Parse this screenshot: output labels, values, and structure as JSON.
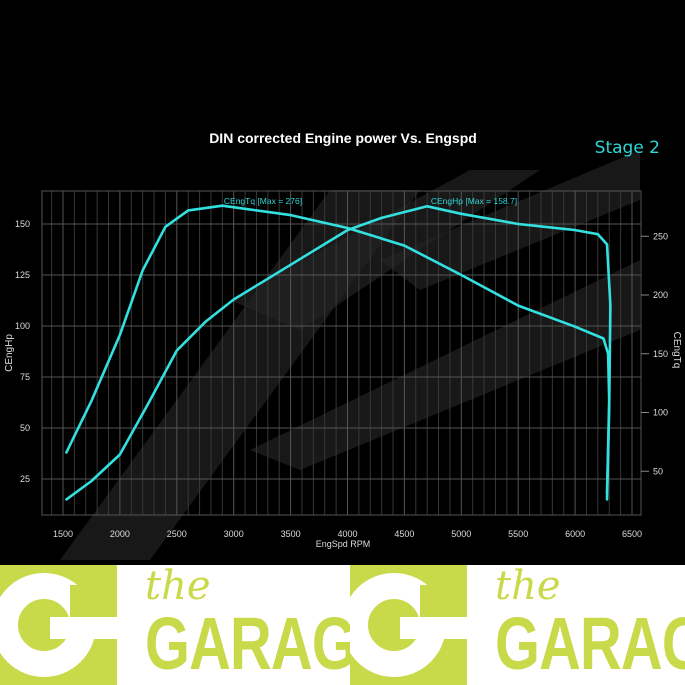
{
  "chart_data": {
    "type": "line",
    "title": "DIN corrected Engine power Vs. Engspd",
    "badge": "Stage 2",
    "xlabel": "EngSpd RPM",
    "ylabel_left": "CEngHp",
    "ylabel_right": "CEngTq",
    "xlim": [
      1300,
      6550
    ],
    "ylim_left": [
      8,
      166
    ],
    "ylim_right": [
      14,
      276
    ],
    "x_ticks": [
      "1500",
      "2000",
      "2500",
      "3000",
      "3500",
      "4000",
      "4500",
      "5000",
      "5500",
      "6000",
      "6500"
    ],
    "y_left_ticks": [
      "25",
      "50",
      "75",
      "100",
      "125",
      "150"
    ],
    "y_right_ticks": [
      "50",
      "100",
      "150",
      "200",
      "250"
    ],
    "grid": true,
    "line_color": "#33e0e0",
    "series": [
      {
        "name": "CEngTq",
        "label": "CEngTq [Max = 276]",
        "axis": "right",
        "points": [
          [
            1530,
            66
          ],
          [
            1750,
            110
          ],
          [
            2000,
            166
          ],
          [
            2200,
            221
          ],
          [
            2400,
            258
          ],
          [
            2600,
            272
          ],
          [
            2900,
            276
          ],
          [
            3500,
            268
          ],
          [
            4000,
            257
          ],
          [
            4500,
            242
          ],
          [
            5000,
            217
          ],
          [
            5500,
            191
          ],
          [
            6000,
            173
          ],
          [
            6250,
            163
          ],
          [
            6290,
            150
          ],
          [
            6300,
            110
          ],
          [
            6290,
            70
          ],
          [
            6280,
            31
          ]
        ]
      },
      {
        "name": "CEngHp",
        "label": "CEngHp [Max = 158.7]",
        "axis": "left",
        "points": [
          [
            1530,
            15
          ],
          [
            1750,
            24
          ],
          [
            2000,
            37
          ],
          [
            2250,
            62
          ],
          [
            2500,
            88
          ],
          [
            2750,
            102
          ],
          [
            3000,
            113
          ],
          [
            3500,
            130
          ],
          [
            4000,
            147
          ],
          [
            4300,
            153
          ],
          [
            4700,
            158.7
          ],
          [
            5000,
            155
          ],
          [
            5500,
            150
          ],
          [
            6000,
            147
          ],
          [
            6200,
            145
          ],
          [
            6280,
            140
          ],
          [
            6310,
            110
          ],
          [
            6300,
            60
          ],
          [
            6280,
            15
          ]
        ]
      }
    ]
  },
  "footer": {
    "logo_text_small": "the",
    "logo_text_large": "GARAGE",
    "brand_color": "#c8d94a"
  }
}
